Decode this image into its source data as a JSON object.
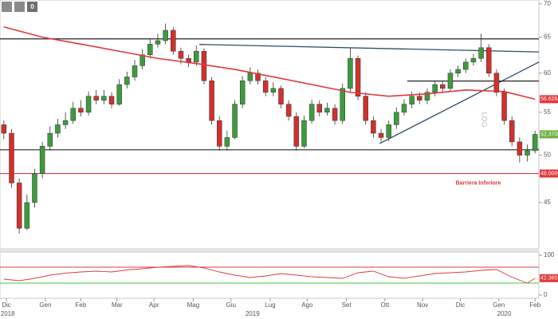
{
  "toolbar": {
    "counter": "0"
  },
  "chart_data": {
    "type": "candlestick",
    "scale_label": "LOG",
    "log_scale": true,
    "up_color": "#3d9b3d",
    "down_color": "#d0312d",
    "ylim": [
      40.6,
      70.6
    ],
    "yticks": [
      45,
      50,
      55,
      60,
      65,
      70
    ],
    "xlim": [
      -0.5,
      69.5
    ],
    "xticks": [
      {
        "value": 0.33,
        "label": "Dic"
      },
      {
        "value": 5.4,
        "label": "Gen"
      },
      {
        "value": 10,
        "label": "Feb"
      },
      {
        "value": 14.7,
        "label": "Mar"
      },
      {
        "value": 19.5,
        "label": "Apr"
      },
      {
        "value": 24.6,
        "label": "Mag"
      },
      {
        "value": 29.5,
        "label": "Giu"
      },
      {
        "value": 34.6,
        "label": "Lug"
      },
      {
        "value": 39.4,
        "label": "Ago"
      },
      {
        "value": 44.5,
        "label": "Set"
      },
      {
        "value": 49.5,
        "label": "Ott"
      },
      {
        "value": 54.4,
        "label": "Nov"
      },
      {
        "value": 59.3,
        "label": "Dic"
      },
      {
        "value": 64.3,
        "label": "Gen"
      },
      {
        "value": 69,
        "label": "Feb"
      }
    ],
    "year_ticks": [
      {
        "value": 0.5,
        "label": "2018"
      },
      {
        "value": 32.3,
        "label": "2019"
      },
      {
        "value": 65,
        "label": "2020"
      }
    ],
    "ohlc": [
      [
        53.5,
        54,
        51.8,
        52.5
      ],
      [
        52.5,
        53,
        46.5,
        47
      ],
      [
        47,
        47.5,
        42,
        42.5
      ],
      [
        42.5,
        45.8,
        42.3,
        45
      ],
      [
        45,
        48.5,
        44.5,
        48
      ],
      [
        48,
        51.5,
        47.5,
        51
      ],
      [
        51,
        53.3,
        50.5,
        52.5
      ],
      [
        52.5,
        54.2,
        52,
        53.5
      ],
      [
        53.5,
        55,
        53,
        54
      ],
      [
        54,
        56.3,
        53.6,
        55.5
      ],
      [
        55.5,
        56.5,
        54.5,
        55
      ],
      [
        55,
        57.6,
        54.6,
        57
      ],
      [
        57,
        57.8,
        56,
        56.5
      ],
      [
        56.5,
        57.8,
        56,
        57
      ],
      [
        57,
        57.5,
        55.5,
        56
      ],
      [
        56,
        59.2,
        55.8,
        58.5
      ],
      [
        58.5,
        60.2,
        58,
        59.5
      ],
      [
        59.5,
        61.8,
        59,
        61
      ],
      [
        61,
        63.3,
        60.5,
        62.5
      ],
      [
        62.5,
        64.8,
        62,
        64
      ],
      [
        64,
        65.5,
        63.5,
        64.5
      ],
      [
        64.5,
        67,
        64,
        66
      ],
      [
        66,
        66.5,
        62.5,
        63
      ],
      [
        63,
        63.5,
        61.2,
        62
      ],
      [
        62,
        62.5,
        60.8,
        61.5
      ],
      [
        61.5,
        63.8,
        61,
        63
      ],
      [
        63,
        63.4,
        58.5,
        59
      ],
      [
        59,
        59.5,
        53.5,
        54
      ],
      [
        54,
        54.5,
        50.5,
        51
      ],
      [
        51,
        52.8,
        50.5,
        52
      ],
      [
        52,
        56.5,
        51.8,
        56
      ],
      [
        56,
        59.6,
        55.5,
        59
      ],
      [
        59,
        60.8,
        58.5,
        60
      ],
      [
        60,
        60.5,
        58.5,
        59
      ],
      [
        59,
        59.5,
        57,
        57.5
      ],
      [
        57.5,
        58.8,
        57,
        58
      ],
      [
        58,
        58.4,
        55.5,
        56
      ],
      [
        56,
        56.5,
        54,
        54.5
      ],
      [
        54.5,
        55,
        50.5,
        51
      ],
      [
        51,
        54.6,
        50.8,
        54
      ],
      [
        54,
        56.6,
        53.6,
        56
      ],
      [
        56,
        56.5,
        54.5,
        55
      ],
      [
        55,
        56.2,
        54.6,
        55.5
      ],
      [
        55.5,
        56,
        53.5,
        54
      ],
      [
        54,
        58.6,
        53.6,
        58
      ],
      [
        58,
        63.5,
        57.5,
        62
      ],
      [
        62,
        62.4,
        56.5,
        57
      ],
      [
        57,
        57.5,
        53.5,
        54
      ],
      [
        54,
        54.5,
        52,
        52.5
      ],
      [
        52.5,
        53,
        51.5,
        52
      ],
      [
        52,
        54,
        51.6,
        53.5
      ],
      [
        53.5,
        55.6,
        53,
        55
      ],
      [
        55,
        56.6,
        54.6,
        56
      ],
      [
        56,
        57.6,
        55.5,
        57
      ],
      [
        57,
        57.5,
        56,
        56.5
      ],
      [
        56.5,
        58,
        56,
        57.5
      ],
      [
        57.5,
        59,
        57,
        58.5
      ],
      [
        58.5,
        59,
        57.5,
        58
      ],
      [
        58,
        60.5,
        57.6,
        60
      ],
      [
        60,
        61,
        59.5,
        60.5
      ],
      [
        60.5,
        62,
        60,
        61.5
      ],
      [
        61.5,
        62.6,
        61,
        62
      ],
      [
        62,
        65.5,
        61.5,
        63.5
      ],
      [
        63.5,
        64,
        59.5,
        60
      ],
      [
        60,
        60.5,
        57,
        57.5
      ],
      [
        57.5,
        58,
        53.5,
        54
      ],
      [
        54,
        54.5,
        51,
        51.5
      ],
      [
        51.5,
        52,
        49.2,
        50
      ],
      [
        50,
        51.2,
        49.3,
        50.5
      ],
      [
        50.5,
        52.8,
        50.2,
        52.37
      ]
    ],
    "moving_average": {
      "color": "#e0383c",
      "x": [
        0,
        5,
        10,
        15,
        20,
        25,
        30,
        35,
        40,
        45,
        50,
        55,
        60,
        65,
        69
      ],
      "values": [
        66.5,
        65,
        64,
        63,
        62,
        61.3,
        60.5,
        59.5,
        58.5,
        57.5,
        57,
        57.3,
        57.8,
        57.6,
        56.6264
      ]
    },
    "hlines": [
      {
        "value": 64.75,
        "color": "#222222"
      },
      {
        "value": 50.6,
        "color": "#222222"
      },
      {
        "value": 48,
        "color": "#e0383c"
      }
    ],
    "lines": [
      {
        "x": [
          25.4,
          69.5
        ],
        "values": [
          63.96,
          62.9
        ],
        "color": "#2c4a6b"
      },
      {
        "x": [
          48.8,
          69.5
        ],
        "values": [
          51.3,
          61.5
        ],
        "color": "#2c4a6b"
      },
      {
        "x": [
          52.4,
          69.5
        ],
        "values": [
          58.96,
          58.96
        ],
        "color": "#222222"
      }
    ],
    "annotation": "Barriera Inferiore",
    "annotation_color": "#e0383c",
    "tags": [
      {
        "value": 56.6264,
        "label": "56.6264",
        "color": "#e0383c"
      },
      {
        "value": 52.37,
        "label": "52.3700",
        "color": "#6cb23c"
      },
      {
        "value": 48,
        "label": "48.0000",
        "color": "#e0383c"
      }
    ],
    "rsi": {
      "color": "#e0383c",
      "ylim": [
        0,
        100
      ],
      "yticks": [
        0,
        100
      ],
      "levels": [
        {
          "value": 70,
          "color": "#e0383c"
        },
        {
          "value": 30,
          "color": "#3ccc3c"
        }
      ],
      "x": [
        0,
        2,
        4,
        6,
        8,
        10,
        12,
        14,
        16,
        18,
        20,
        22,
        24,
        26,
        28,
        30,
        32,
        34,
        36,
        38,
        40,
        42,
        44,
        46,
        48,
        50,
        52,
        54,
        56,
        58,
        60,
        62,
        64,
        66,
        68,
        69
      ],
      "values": [
        40,
        36,
        42,
        50,
        55,
        58,
        60,
        58,
        63,
        66,
        70,
        72,
        74,
        68,
        58,
        50,
        44,
        48,
        54,
        50,
        46,
        44,
        42,
        56,
        60,
        46,
        42,
        48,
        54,
        56,
        58,
        62,
        64,
        45,
        30,
        42.3602
      ],
      "tag": {
        "value": 42.3602,
        "label": "42.3602",
        "color": "#e0383c"
      }
    }
  }
}
